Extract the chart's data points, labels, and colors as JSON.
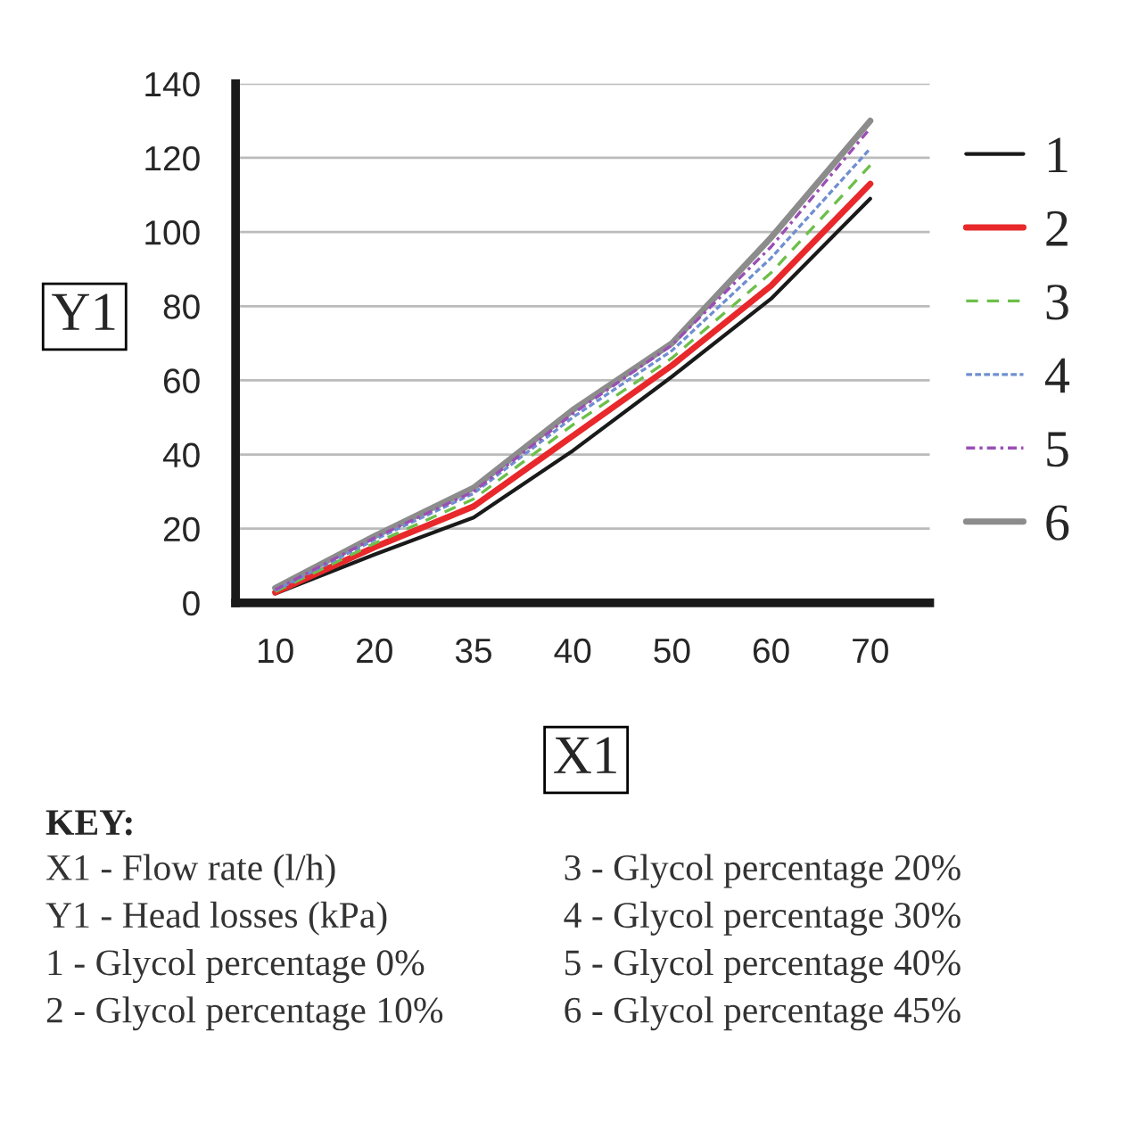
{
  "chart_data": {
    "type": "line",
    "xlabel": "X1",
    "ylabel": "Y1",
    "categories": [
      "10",
      "20",
      "35",
      "40",
      "50",
      "60",
      "70"
    ],
    "series": [
      {
        "name": "1",
        "color": "#1a1a1a",
        "line_style": "solid",
        "values": [
          2.5,
          13,
          23,
          41,
          61,
          82,
          109
        ]
      },
      {
        "name": "2",
        "color": "#e8282b",
        "line_style": "solid",
        "values": [
          2.8,
          15,
          26,
          45,
          64,
          85.5,
          113
        ]
      },
      {
        "name": "3",
        "color": "#6cbf4a",
        "line_style": "dashed",
        "values": [
          3,
          16,
          28,
          48,
          66,
          89,
          118
        ]
      },
      {
        "name": "4",
        "color": "#6f8fd0",
        "line_style": "dotted",
        "values": [
          3.3,
          17,
          29.5,
          50,
          68,
          93,
          122.5
        ]
      },
      {
        "name": "5",
        "color": "#9a4fb5",
        "line_style": "dashdot",
        "values": [
          3.5,
          17.5,
          30,
          51,
          69.5,
          96,
          128
        ]
      },
      {
        "name": "6",
        "color": "#8c8c8c",
        "line_style": "solid",
        "values": [
          4,
          18,
          31,
          52,
          70,
          98.5,
          130
        ]
      }
    ],
    "ylim": [
      0,
      140
    ],
    "yticks": [
      0,
      20,
      40,
      60,
      80,
      100,
      120,
      140
    ],
    "grid": "y",
    "legend": "right",
    "marker": "none",
    "annotations": [
      "KEY:",
      "X1 - Flow rate (l/h)",
      "Y1 - Head losses (kPa)",
      "1 - Glycol percentage 0%",
      "2 - Glycol percentage 10%",
      "3 - Glycol percentage 20%",
      "4 - Glycol percentage 30%",
      "5 - Glycol percentage 40%",
      "6 - Glycol percentage 45%"
    ]
  }
}
